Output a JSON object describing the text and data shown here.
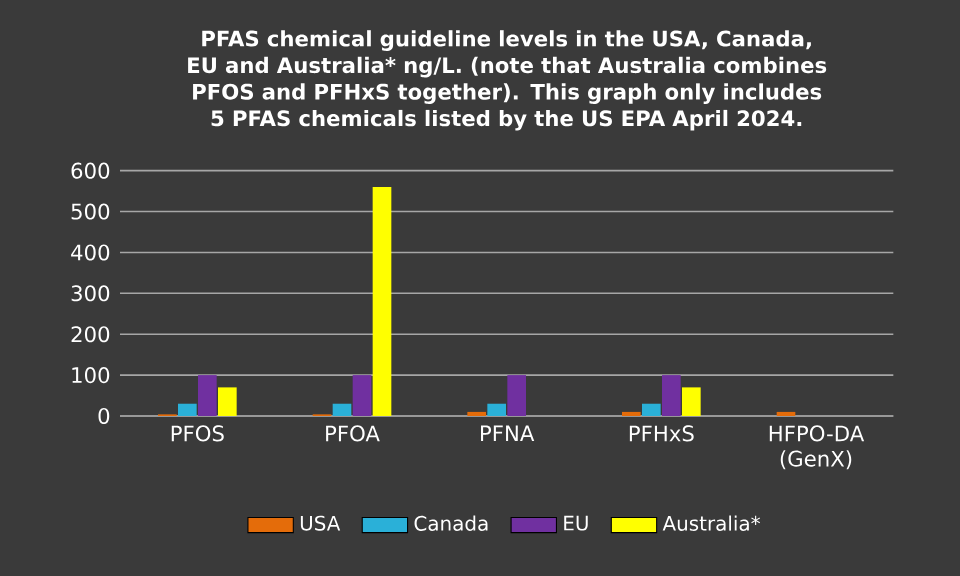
{
  "chart_data": {
    "type": "bar",
    "title": "PFAS chemical guideline levels in the USA, Canada, EU and Australia* ng/L. (note that Australia combines PFOS and PFHxS together). This graph only includes 5 PFAS chemicals listed by the US EPA April 2024.",
    "categories": [
      "PFOS",
      "PFOA",
      "PFNA",
      "PFHxS",
      "HFPO-DA (GenX)"
    ],
    "series": [
      {
        "name": "USA",
        "color": "#e46c0a",
        "values": [
          4,
          4,
          10,
          10,
          10
        ]
      },
      {
        "name": "Canada",
        "color": "#2ab0d8",
        "values": [
          30,
          30,
          30,
          30,
          null
        ]
      },
      {
        "name": "EU",
        "color": "#7030a0",
        "values": [
          100,
          100,
          100,
          100,
          null
        ]
      },
      {
        "name": "Australia*",
        "color": "#ffff00",
        "values": [
          70,
          560,
          null,
          70,
          null
        ]
      }
    ],
    "ylim": [
      0,
      600
    ],
    "yticks": [
      0,
      100,
      200,
      300,
      400,
      500,
      600
    ],
    "grid": "y",
    "legend": "bottom"
  }
}
